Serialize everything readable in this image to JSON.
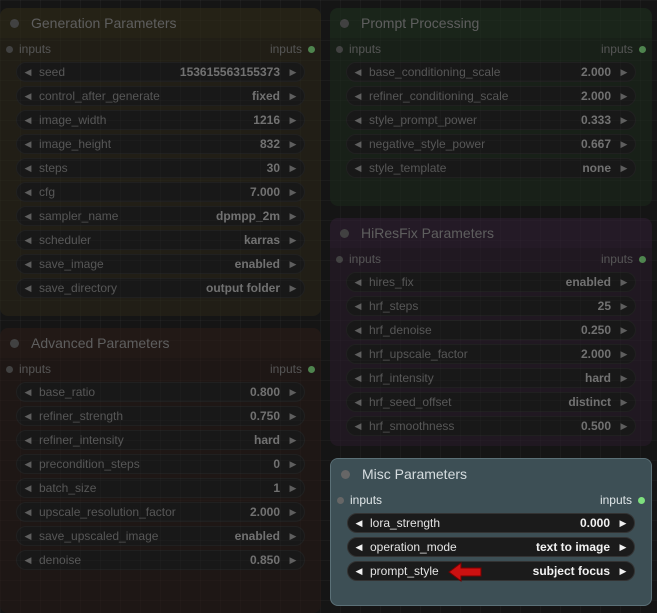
{
  "colors": {
    "accent_slot": "#7ee07e",
    "highlight_arrow": "#cc1111"
  },
  "generation": {
    "title": "Generation Parameters",
    "inputs_left": "inputs",
    "inputs_right": "inputs",
    "widgets": [
      {
        "label": "seed",
        "value": "153615563155373"
      },
      {
        "label": "control_after_generate",
        "value": "fixed"
      },
      {
        "label": "image_width",
        "value": "1216"
      },
      {
        "label": "image_height",
        "value": "832"
      },
      {
        "label": "steps",
        "value": "30"
      },
      {
        "label": "cfg",
        "value": "7.000"
      },
      {
        "label": "sampler_name",
        "value": "dpmpp_2m"
      },
      {
        "label": "scheduler",
        "value": "karras"
      },
      {
        "label": "save_image",
        "value": "enabled"
      },
      {
        "label": "save_directory",
        "value": "output folder"
      }
    ]
  },
  "advanced": {
    "title": "Advanced Parameters",
    "inputs_left": "inputs",
    "inputs_right": "inputs",
    "widgets": [
      {
        "label": "base_ratio",
        "value": "0.800"
      },
      {
        "label": "refiner_strength",
        "value": "0.750"
      },
      {
        "label": "refiner_intensity",
        "value": "hard"
      },
      {
        "label": "precondition_steps",
        "value": "0"
      },
      {
        "label": "batch_size",
        "value": "1"
      },
      {
        "label": "upscale_resolution_factor",
        "value": "2.000"
      },
      {
        "label": "save_upscaled_image",
        "value": "enabled"
      },
      {
        "label": "denoise",
        "value": "0.850"
      }
    ]
  },
  "prompt": {
    "title": "Prompt Processing",
    "inputs_left": "inputs",
    "inputs_right": "inputs",
    "widgets": [
      {
        "label": "base_conditioning_scale",
        "value": "2.000"
      },
      {
        "label": "refiner_conditioning_scale",
        "value": "2.000"
      },
      {
        "label": "style_prompt_power",
        "value": "0.333"
      },
      {
        "label": "negative_style_power",
        "value": "0.667"
      },
      {
        "label": "style_template",
        "value": "none"
      }
    ]
  },
  "hires": {
    "title": "HiResFix Parameters",
    "inputs_left": "inputs",
    "inputs_right": "inputs",
    "widgets": [
      {
        "label": "hires_fix",
        "value": "enabled"
      },
      {
        "label": "hrf_steps",
        "value": "25"
      },
      {
        "label": "hrf_denoise",
        "value": "0.250"
      },
      {
        "label": "hrf_upscale_factor",
        "value": "2.000"
      },
      {
        "label": "hrf_intensity",
        "value": "hard"
      },
      {
        "label": "hrf_seed_offset",
        "value": "distinct"
      },
      {
        "label": "hrf_smoothness",
        "value": "0.500"
      }
    ]
  },
  "misc": {
    "title": "Misc Parameters",
    "inputs_left": "inputs",
    "inputs_right": "inputs",
    "widgets": [
      {
        "label": "lora_strength",
        "value": "0.000"
      },
      {
        "label": "operation_mode",
        "value": "text to image"
      },
      {
        "label": "prompt_style",
        "value": "subject focus"
      }
    ]
  }
}
